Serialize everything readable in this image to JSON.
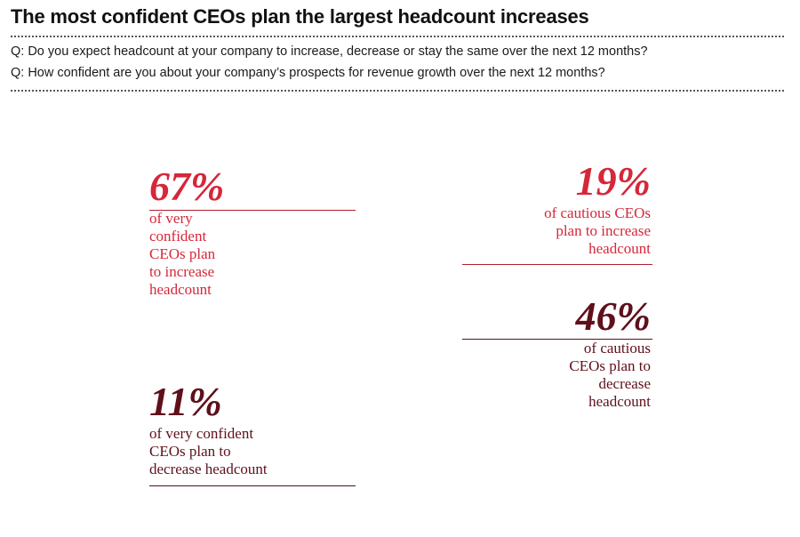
{
  "title": "The most confident CEOs plan the largest headcount increases",
  "questions": [
    "Q: Do you expect headcount at your company to increase, decrease or stay the same over the next 12 months?",
    "Q: How confident are you about your company’s prospects for revenue growth over the next 12 months?"
  ],
  "colors": {
    "increase": "#d9283a",
    "decrease": "#6e1420",
    "remainder": "#6b6b6b",
    "remainder_light": "#a9a9a9",
    "increase_text": "#d5283a",
    "decrease_text": "#5e101b"
  },
  "chart_data": {
    "type": "bar",
    "categories": [
      "very confident CEOs",
      "cautious CEOs"
    ],
    "series": [
      {
        "values": [
          67,
          19
        ]
      },
      {
        "values": [
          11,
          46
        ]
      }
    ],
    "ylim": [
      0,
      100
    ],
    "annotations": [
      {
        "value": "67%",
        "text": "of very\nconfident\nCEOs plan\nto increase\nheadcount"
      },
      {
        "value": "11%",
        "text": "of very confident\nCEOs plan to\ndecrease headcount"
      },
      {
        "value": "19%",
        "text": "of cautious CEOs\nplan to increase\nheadcount"
      },
      {
        "value": "46%",
        "text": "of cautious\nCEOs plan to\ndecrease\nheadcount"
      }
    ]
  }
}
